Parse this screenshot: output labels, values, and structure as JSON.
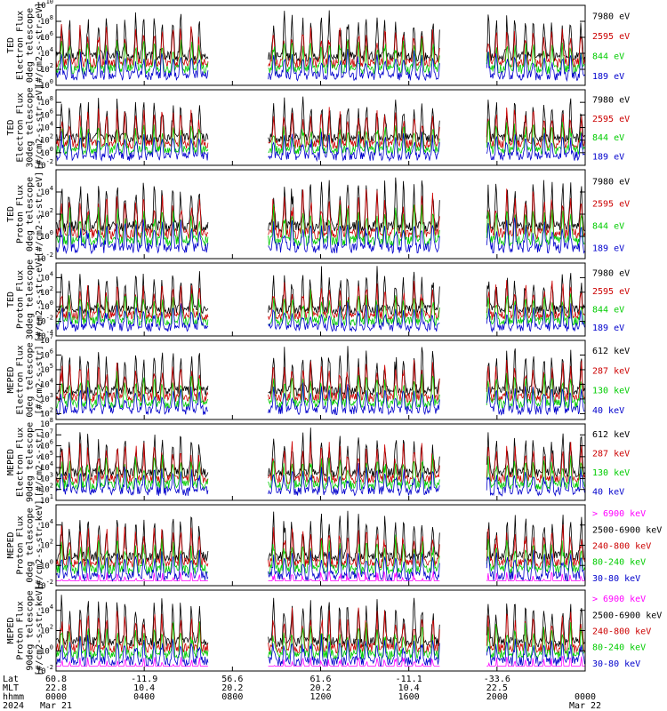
{
  "chart_data": [
    {
      "type": "line",
      "ylabel": [
        "TED",
        "Electron Flux",
        "0deg telescope",
        "[#/cm2-s-str-eV]"
      ],
      "y_log_range": [
        0,
        10
      ],
      "y_tick_exponents": [
        0,
        2,
        4,
        6,
        8,
        10
      ],
      "series": [
        {
          "name": "7980 eV",
          "color": "#000000"
        },
        {
          "name": "2595 eV",
          "color": "#cc0000"
        },
        {
          "name": "844 eV",
          "color": "#00cc00"
        },
        {
          "name": "189 eV",
          "color": "#0000cc"
        }
      ]
    },
    {
      "type": "line",
      "ylabel": [
        "TED",
        "Electron Flux",
        "30deg telescope",
        "[#/cm2-s-str-eV]"
      ],
      "y_log_range": [
        -2,
        10
      ],
      "y_tick_exponents": [
        -2,
        0,
        2,
        4,
        6,
        8
      ],
      "series": [
        {
          "name": "7980 eV",
          "color": "#000000"
        },
        {
          "name": "2595 eV",
          "color": "#cc0000"
        },
        {
          "name": "844 eV",
          "color": "#00cc00"
        },
        {
          "name": "189 eV",
          "color": "#0000cc"
        }
      ]
    },
    {
      "type": "line",
      "ylabel": [
        "TED",
        "Proton Flux",
        "0deg telescope",
        "[#/cm2-s-str-eV]"
      ],
      "y_log_range": [
        -2,
        6
      ],
      "y_tick_exponents": [
        -2,
        0,
        2,
        4
      ],
      "series": [
        {
          "name": "7980 eV",
          "color": "#000000"
        },
        {
          "name": "2595 eV",
          "color": "#cc0000"
        },
        {
          "name": "844 eV",
          "color": "#00cc00"
        },
        {
          "name": "189 eV",
          "color": "#0000cc"
        }
      ]
    },
    {
      "type": "line",
      "ylabel": [
        "TED",
        "Proton Flux",
        "30deg telescope",
        "[#/cm2-s-str-eV]"
      ],
      "y_log_range": [
        -4,
        6
      ],
      "y_tick_exponents": [
        -4,
        -2,
        0,
        2,
        4
      ],
      "series": [
        {
          "name": "7980 eV",
          "color": "#000000"
        },
        {
          "name": "2595 eV",
          "color": "#cc0000"
        },
        {
          "name": "844 eV",
          "color": "#00cc00"
        },
        {
          "name": "189 eV",
          "color": "#0000cc"
        }
      ]
    },
    {
      "type": "line",
      "ylabel": [
        "MEPED",
        "Electron Flux",
        "0deg telescope",
        "[#/cm2-s-str]"
      ],
      "y_log_range": [
        1.6,
        7
      ],
      "y_tick_exponents": [
        2,
        3,
        4,
        5,
        6,
        7
      ],
      "series": [
        {
          "name": "612 keV",
          "color": "#000000"
        },
        {
          "name": "287 keV",
          "color": "#cc0000"
        },
        {
          "name": "130 keV",
          "color": "#00cc00"
        },
        {
          "name": "40 keV",
          "color": "#0000cc"
        }
      ]
    },
    {
      "type": "line",
      "ylabel": [
        "MEPED",
        "Electron Flux",
        "90deg telescope",
        "[#/cm2-s-str]"
      ],
      "y_log_range": [
        1,
        8
      ],
      "y_tick_exponents": [
        1,
        2,
        3,
        4,
        5,
        6,
        7,
        8
      ],
      "series": [
        {
          "name": "612 keV",
          "color": "#000000"
        },
        {
          "name": "287 keV",
          "color": "#cc0000"
        },
        {
          "name": "130 keV",
          "color": "#00cc00"
        },
        {
          "name": "40 keV",
          "color": "#0000cc"
        }
      ]
    },
    {
      "type": "line",
      "ylabel": [
        "MEPED",
        "Proton Flux",
        "0deg telescope",
        "[#/cm2-s-str-keV]"
      ],
      "y_log_range": [
        -2,
        6
      ],
      "y_tick_exponents": [
        -2,
        0,
        2,
        4
      ],
      "series": [
        {
          "name": "> 6900 keV",
          "color": "#ff00ff"
        },
        {
          "name": "2500-6900 keV",
          "color": "#000000"
        },
        {
          "name": "240-800 keV",
          "color": "#cc0000"
        },
        {
          "name": "80-240 keV",
          "color": "#00cc00"
        },
        {
          "name": "30-80 keV",
          "color": "#0000cc"
        }
      ]
    },
    {
      "type": "line",
      "ylabel": [
        "MEPED",
        "Proton Flux",
        "90deg telescope",
        "[#/cm2-s-str-keV]"
      ],
      "y_log_range": [
        -2,
        6
      ],
      "y_tick_exponents": [
        -2,
        0,
        2,
        4
      ],
      "series": [
        {
          "name": "> 6900 keV",
          "color": "#ff00ff"
        },
        {
          "name": "2500-6900 keV",
          "color": "#000000"
        },
        {
          "name": "240-800 keV",
          "color": "#cc0000"
        },
        {
          "name": "80-240 keV",
          "color": "#00cc00"
        },
        {
          "name": "30-80 keV",
          "color": "#0000cc"
        }
      ]
    }
  ],
  "time_axis": {
    "row_labels": [
      "Lat",
      "MLT",
      "hhmm",
      "2024"
    ],
    "start_hour": 0,
    "end_hour": 24,
    "data_gaps_hours": [
      [
        6.9,
        9.6
      ],
      [
        17.4,
        19.5
      ]
    ],
    "ticks": [
      {
        "hour": 0,
        "lat": "60.8",
        "mlt": "22.8",
        "hhmm": "0000",
        "date": "Mar 21"
      },
      {
        "hour": 4,
        "lat": "-11.9",
        "mlt": "10.4",
        "hhmm": "0400",
        "date": ""
      },
      {
        "hour": 8,
        "lat": "56.6",
        "mlt": "20.2",
        "hhmm": "0800",
        "date": ""
      },
      {
        "hour": 12,
        "lat": "61.6",
        "mlt": "20.2",
        "hhmm": "1200",
        "date": ""
      },
      {
        "hour": 16,
        "lat": "-11.1",
        "mlt": "10.4",
        "hhmm": "1600",
        "date": ""
      },
      {
        "hour": 20,
        "lat": "-33.6",
        "mlt": "22.5",
        "hhmm": "2000",
        "date": ""
      },
      {
        "hour": 24,
        "lat": "",
        "mlt": "",
        "hhmm": "0000",
        "date": "Mar 22"
      }
    ]
  }
}
